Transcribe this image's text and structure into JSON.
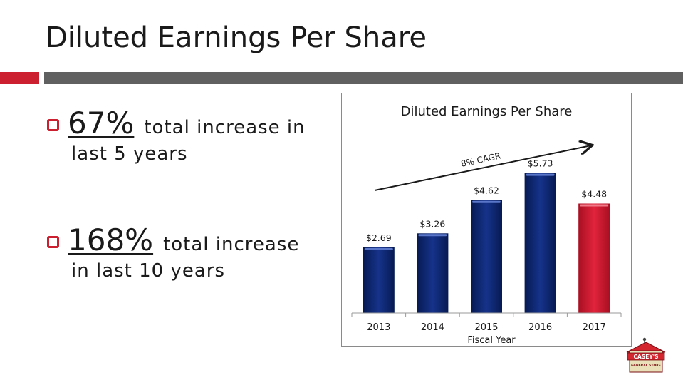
{
  "slide": {
    "title": "Diluted Earnings Per Share"
  },
  "bullets": [
    {
      "highlight": "67%",
      "text_line1": "total increase in",
      "text_line2": "last 5 years"
    },
    {
      "highlight": "168%",
      "text_line1": "total increase",
      "text_line2": "in last 10 years"
    }
  ],
  "colors": {
    "accent_red": "#cc1f2f",
    "bar_navy": "#0a2468",
    "bar_red": "#d01a33",
    "divider_gray": "#606060"
  },
  "logo": {
    "text_top": "CASEY'S",
    "text_bottom": "GENERAL STORE"
  },
  "chart_data": {
    "type": "bar",
    "title": "Diluted Earnings Per Share",
    "xlabel": "Fiscal Year",
    "ylabel": "",
    "categories": [
      "2013",
      "2014",
      "2015",
      "2016",
      "2017"
    ],
    "values": [
      2.69,
      3.26,
      4.62,
      5.73,
      4.48
    ],
    "value_labels": [
      "$2.69",
      "$3.26",
      "$4.62",
      "$5.73",
      "$4.48"
    ],
    "highlight_index": 4,
    "ylim": [
      0,
      6.8
    ],
    "grid": false,
    "annotation": "8% CAGR"
  }
}
